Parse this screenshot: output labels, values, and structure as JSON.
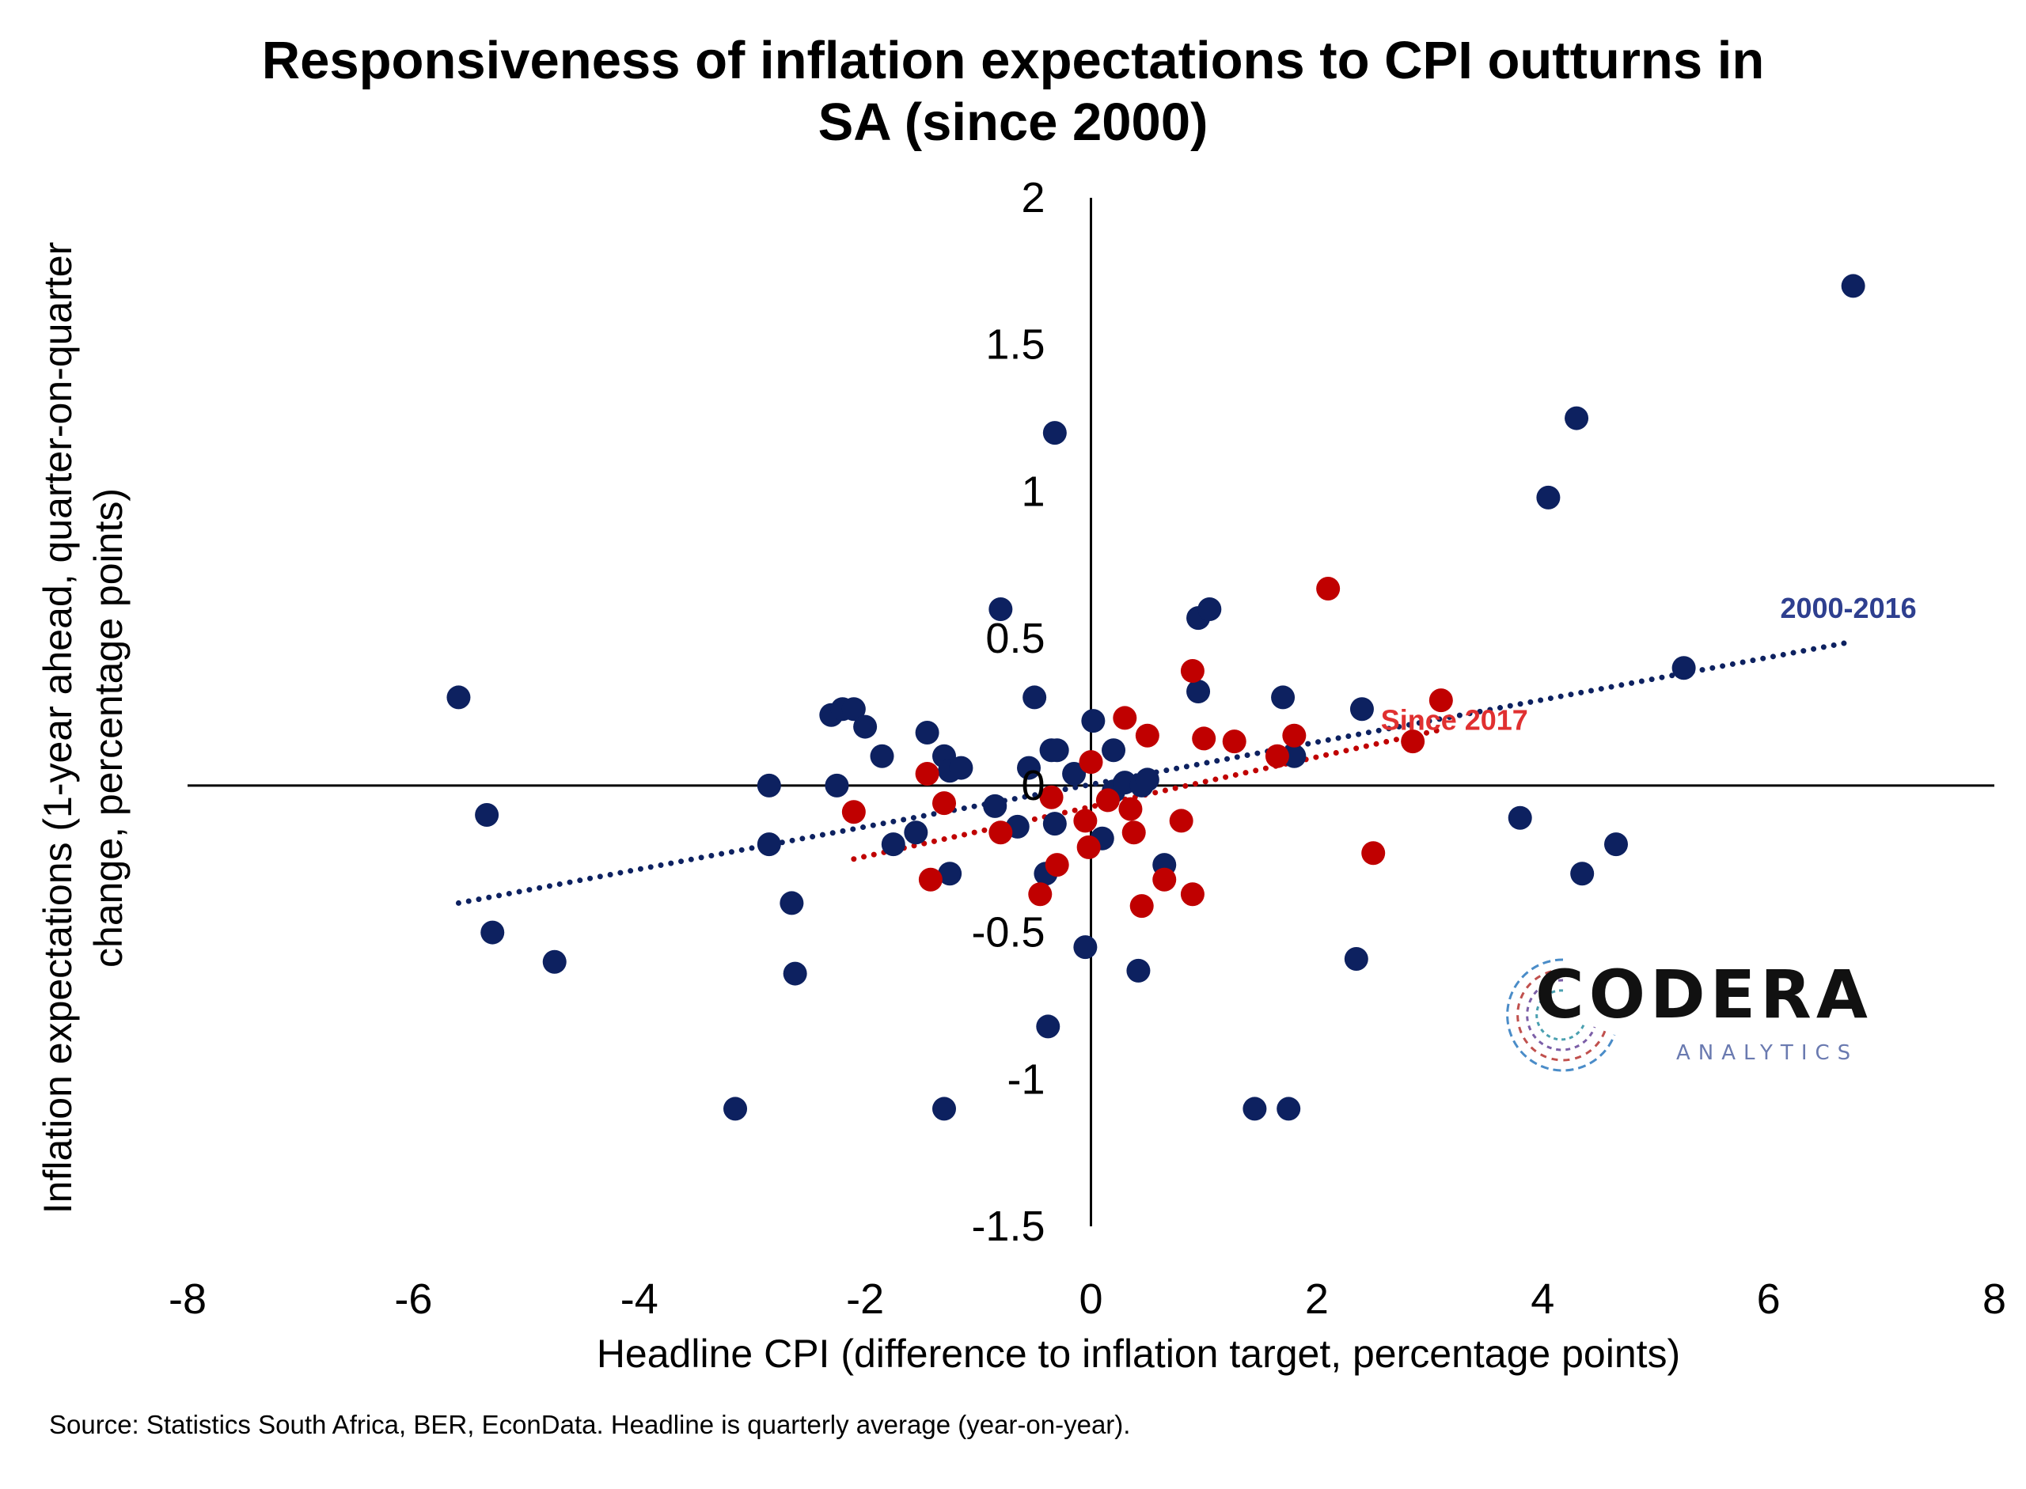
{
  "chart_data": {
    "type": "scatter",
    "title_lines": [
      "Responsiveness of inflation expectations to CPI outturns in",
      "SA (since 2000)"
    ],
    "xlabel": "Headline CPI (difference to inflation target, percentage points)",
    "ylabel_lines": [
      "Inflation expectations (1-year ahead, quarter-on-quarter",
      "change, percentage points)"
    ],
    "xlim": [
      -8,
      8
    ],
    "ylim": [
      -1.5,
      2
    ],
    "x_ticks": [
      -8,
      -6,
      -4,
      -2,
      0,
      2,
      4,
      6,
      8
    ],
    "x_tick_labels": [
      "-8",
      "-6",
      "-4",
      "-2",
      "0",
      "2",
      "4",
      "6",
      "8"
    ],
    "y_ticks": [
      2,
      1.5,
      1,
      0.5,
      0,
      -0.5,
      -1,
      -1.5
    ],
    "y_tick_labels": [
      "2",
      "1.5",
      "1",
      "0.5",
      "0",
      "-0.5",
      "-1",
      "-1.5"
    ],
    "grid": false,
    "series": [
      {
        "name": "2000-2016",
        "color": "#0d2160",
        "points": [
          [
            -5.6,
            0.3
          ],
          [
            -5.35,
            -0.1
          ],
          [
            -5.3,
            -0.5
          ],
          [
            -4.75,
            -0.6
          ],
          [
            -3.15,
            -1.1
          ],
          [
            -2.85,
            0.0
          ],
          [
            -2.85,
            -0.2
          ],
          [
            -2.65,
            -0.4
          ],
          [
            -2.62,
            -0.64
          ],
          [
            -2.3,
            0.24
          ],
          [
            -2.25,
            0.0
          ],
          [
            -2.2,
            0.26
          ],
          [
            -2.1,
            0.26
          ],
          [
            -2.0,
            0.2
          ],
          [
            -1.85,
            0.1
          ],
          [
            -1.75,
            -0.2
          ],
          [
            -1.55,
            -0.16
          ],
          [
            -1.45,
            0.18
          ],
          [
            -1.3,
            0.1
          ],
          [
            -1.3,
            -1.1
          ],
          [
            -1.25,
            0.05
          ],
          [
            -1.25,
            -0.3
          ],
          [
            -1.15,
            0.06
          ],
          [
            -0.85,
            -0.07
          ],
          [
            -0.8,
            0.6
          ],
          [
            -0.65,
            -0.14
          ],
          [
            -0.55,
            0.06
          ],
          [
            -0.5,
            0.3
          ],
          [
            -0.4,
            -0.3
          ],
          [
            -0.38,
            -0.82
          ],
          [
            -0.35,
            0.12
          ],
          [
            -0.32,
            1.2
          ],
          [
            -0.32,
            -0.13
          ],
          [
            -0.3,
            0.12
          ],
          [
            -0.15,
            0.04
          ],
          [
            -0.05,
            -0.55
          ],
          [
            0.02,
            0.22
          ],
          [
            0.1,
            -0.18
          ],
          [
            0.2,
            -0.02
          ],
          [
            0.2,
            0.12
          ],
          [
            0.3,
            0.01
          ],
          [
            0.42,
            -0.63
          ],
          [
            0.45,
            0.0
          ],
          [
            0.5,
            0.02
          ],
          [
            0.65,
            -0.27
          ],
          [
            0.95,
            0.57
          ],
          [
            0.95,
            0.32
          ],
          [
            1.05,
            0.6
          ],
          [
            1.45,
            -1.1
          ],
          [
            1.7,
            0.3
          ],
          [
            1.75,
            -1.1
          ],
          [
            1.8,
            0.1
          ],
          [
            2.35,
            -0.59
          ],
          [
            2.4,
            0.26
          ],
          [
            3.8,
            -0.11
          ],
          [
            4.05,
            0.98
          ],
          [
            4.3,
            1.25
          ],
          [
            4.35,
            -0.3
          ],
          [
            4.65,
            -0.2
          ],
          [
            5.25,
            0.4
          ],
          [
            6.75,
            1.7
          ]
        ]
      },
      {
        "name": "Since 2017",
        "color": "#c00000",
        "points": [
          [
            -2.1,
            -0.09
          ],
          [
            -1.45,
            0.04
          ],
          [
            -1.42,
            -0.32
          ],
          [
            -1.3,
            -0.06
          ],
          [
            -0.8,
            -0.16
          ],
          [
            -0.45,
            -0.37
          ],
          [
            -0.35,
            -0.04
          ],
          [
            -0.3,
            -0.27
          ],
          [
            -0.05,
            -0.12
          ],
          [
            -0.02,
            -0.21
          ],
          [
            0.0,
            0.08
          ],
          [
            0.15,
            -0.05
          ],
          [
            0.3,
            0.23
          ],
          [
            0.35,
            -0.08
          ],
          [
            0.38,
            -0.16
          ],
          [
            0.45,
            -0.41
          ],
          [
            0.5,
            0.17
          ],
          [
            0.65,
            -0.32
          ],
          [
            0.8,
            -0.12
          ],
          [
            0.9,
            0.39
          ],
          [
            0.9,
            -0.37
          ],
          [
            1.0,
            0.16
          ],
          [
            1.27,
            0.15
          ],
          [
            1.65,
            0.1
          ],
          [
            1.8,
            0.17
          ],
          [
            2.1,
            0.67
          ],
          [
            2.5,
            -0.23
          ],
          [
            2.85,
            0.15
          ],
          [
            3.1,
            0.29
          ]
        ]
      }
    ],
    "trendlines": [
      {
        "name": "2000-2016",
        "label": "2000-2016",
        "color": "#0d2160",
        "from": [
          -5.6,
          -0.4
        ],
        "to": [
          6.75,
          0.49
        ]
      },
      {
        "name": "Since 2017",
        "label": "Since 2017",
        "color": "#c00000",
        "from": [
          -2.1,
          -0.25
        ],
        "to": [
          3.1,
          0.19
        ]
      }
    ],
    "source": "Source: Statistics South Africa, BER, EconData. Headline is quarterly average (year-on-year)."
  },
  "logo": {
    "word": "CODERA",
    "sub": "ANALYTICS"
  }
}
